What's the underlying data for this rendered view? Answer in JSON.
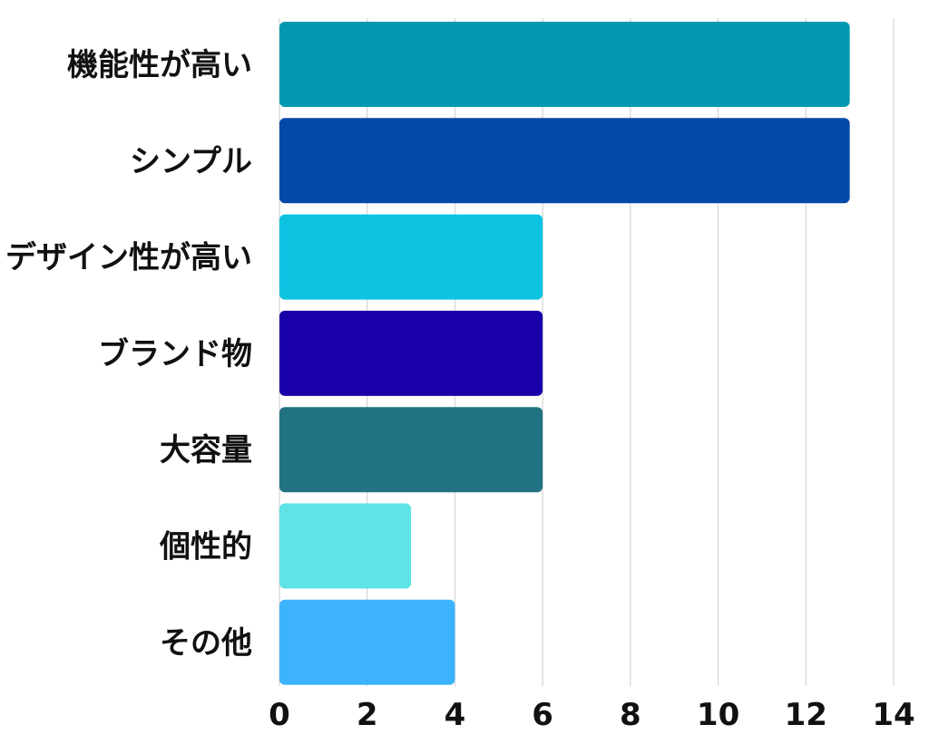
{
  "chart_data": {
    "type": "bar",
    "orientation": "horizontal",
    "categories": [
      "機能性が高い",
      "シンプル",
      "デザイン性が高い",
      "ブランド物",
      "大容量",
      "個性的",
      "その他"
    ],
    "values": [
      13,
      13,
      6,
      6,
      6,
      3,
      4
    ],
    "colors": [
      "#0399B0",
      "#0349A8",
      "#0EC3E1",
      "#1A00A8",
      "#217383",
      "#5EE3E6",
      "#3DB3FD"
    ],
    "xlim": [
      0,
      14
    ],
    "xticks": [
      0,
      2,
      4,
      6,
      8,
      10,
      12,
      14
    ],
    "grid": true,
    "title": "",
    "xlabel": "",
    "ylabel": ""
  }
}
